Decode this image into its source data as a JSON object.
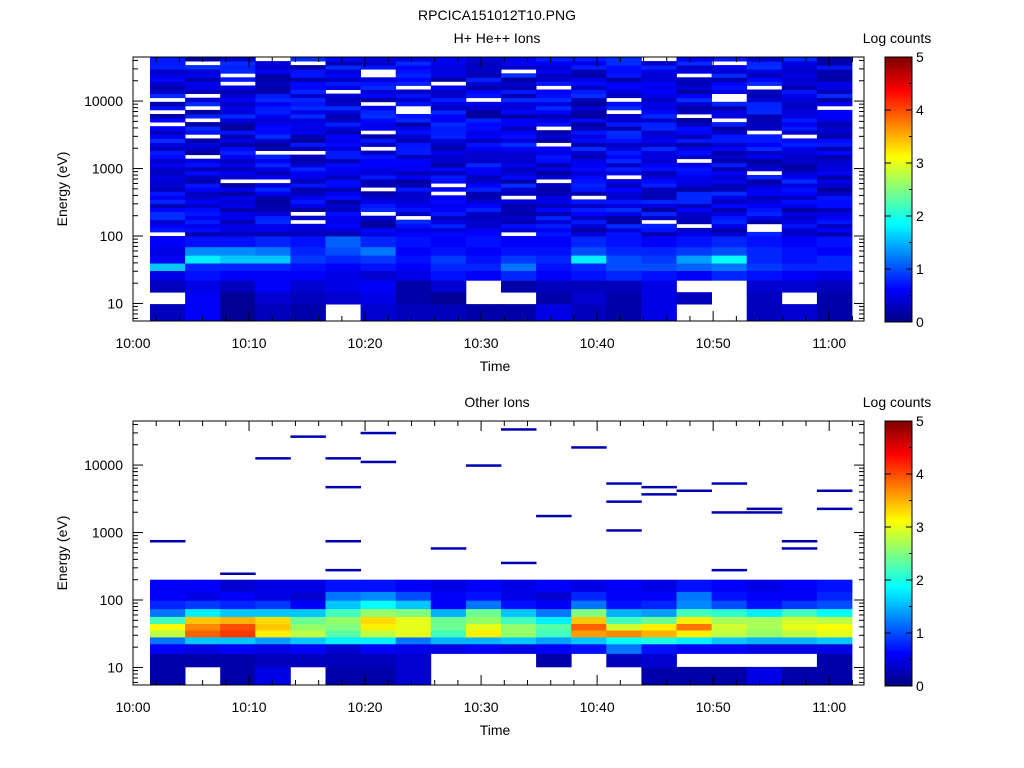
{
  "figure_title": "RPCICA151012T10.PNG",
  "panels": [
    {
      "title": "H+ He++ Ions",
      "xlabel": "Time",
      "ylabel": "Energy (eV)",
      "colorbar_label": "Log counts",
      "colorbar_ticks": [
        "0",
        "1",
        "2",
        "3",
        "4",
        "5"
      ],
      "x_ticks": [
        "10:00",
        "10:10",
        "10:20",
        "10:30",
        "10:40",
        "10:50",
        "11:00"
      ],
      "y_ticks": [
        "10",
        "100",
        "1000",
        "10000"
      ]
    },
    {
      "title": "Other Ions",
      "xlabel": "Time",
      "ylabel": "Energy (eV)",
      "colorbar_label": "Log counts",
      "colorbar_ticks": [
        "0",
        "1",
        "2",
        "3",
        "4",
        "5"
      ],
      "x_ticks": [
        "10:00",
        "10:10",
        "10:20",
        "10:30",
        "10:40",
        "10:50",
        "11:00"
      ],
      "y_ticks": [
        "10",
        "100",
        "1000",
        "10000"
      ]
    }
  ],
  "chart_data": [
    {
      "type": "heatmap",
      "title": "H+ He++ Ions",
      "xlabel": "Time",
      "ylabel": "Energy (eV)",
      "x_range": [
        "10:00",
        "11:03"
      ],
      "y_range": [
        5.5,
        45000
      ],
      "y_scale": "log",
      "colorbar": {
        "label": "Log counts",
        "range": [
          0,
          5
        ],
        "colormap": "jet"
      },
      "time_bins": [
        "10:02",
        "10:05",
        "10:08",
        "10:12",
        "10:15",
        "10:18",
        "10:21",
        "10:24",
        "10:27",
        "10:31",
        "10:34",
        "10:37",
        "10:40",
        "10:43",
        "10:47",
        "10:50",
        "10:53",
        "10:56",
        "10:59",
        "11:02"
      ],
      "energy_bands_eV": [
        {
          "energy": 8,
          "values": [
            0.3,
            0.6,
            0.1,
            0.3,
            0.2,
            null,
            0.4,
            0.3,
            0.3,
            0.2,
            0.2,
            0.5,
            0.3,
            0.2,
            0.5,
            null,
            null,
            0.3,
            0.4,
            0.2
          ]
        },
        {
          "energy": 12,
          "values": [
            null,
            0.6,
            0.1,
            0.4,
            0.3,
            0.4,
            0.5,
            0.2,
            0.1,
            null,
            null,
            0.2,
            0.4,
            0.2,
            0.5,
            0.3,
            null,
            0.3,
            null,
            0.2
          ]
        },
        {
          "energy": 18,
          "values": [
            0.3,
            0.5,
            0.3,
            0.6,
            0.4,
            0.5,
            0.6,
            0.2,
            0.4,
            null,
            0.2,
            0.3,
            0.3,
            0.3,
            0.5,
            null,
            null,
            0.4,
            0.4,
            0.3
          ]
        },
        {
          "energy": 27,
          "values": [
            0.5,
            0.7,
            0.6,
            0.6,
            0.6,
            0.5,
            0.4,
            0.5,
            0.7,
            0.6,
            0.8,
            0.6,
            0.7,
            0.8,
            0.7,
            0.6,
            0.8,
            0.7,
            0.6,
            0.5
          ]
        },
        {
          "energy": 35,
          "values": [
            1.6,
            0.8,
            0.8,
            0.8,
            0.7,
            0.6,
            0.7,
            0.6,
            0.8,
            0.8,
            1.2,
            0.7,
            0.8,
            1.0,
            1.0,
            1.1,
            1.2,
            0.9,
            0.8,
            0.8
          ]
        },
        {
          "energy": 45,
          "values": [
            0.6,
            1.8,
            1.6,
            1.6,
            0.9,
            0.8,
            0.9,
            0.7,
            0.9,
            0.7,
            0.9,
            0.8,
            1.8,
            1.0,
            0.9,
            1.4,
            1.9,
            0.8,
            0.7,
            0.8
          ]
        },
        {
          "energy": 60,
          "values": [
            0.5,
            1.3,
            1.3,
            1.2,
            0.8,
            1.0,
            1.2,
            0.6,
            0.7,
            0.6,
            0.7,
            0.7,
            1.0,
            0.8,
            0.8,
            0.9,
            1.0,
            0.8,
            0.7,
            0.6
          ]
        },
        {
          "energy": 80,
          "values": [
            0.6,
            0.7,
            0.7,
            0.8,
            0.7,
            1.1,
            0.8,
            0.7,
            0.6,
            0.7,
            0.6,
            0.6,
            0.8,
            0.7,
            0.6,
            0.7,
            0.8,
            0.7,
            0.6,
            0.7
          ]
        }
      ],
      "background": "blue (~0.3–0.8 log counts) across 100–45000 eV with scattered empty white bins"
    },
    {
      "type": "heatmap",
      "title": "Other Ions",
      "xlabel": "Time",
      "ylabel": "Energy (eV)",
      "x_range": [
        "10:00",
        "11:03"
      ],
      "y_range": [
        5.5,
        45000
      ],
      "y_scale": "log",
      "colorbar": {
        "label": "Log counts",
        "range": [
          0,
          5
        ],
        "colormap": "jet"
      },
      "time_bins": [
        "10:02",
        "10:05",
        "10:08",
        "10:12",
        "10:15",
        "10:18",
        "10:21",
        "10:24",
        "10:27",
        "10:31",
        "10:34",
        "10:37",
        "10:40",
        "10:43",
        "10:47",
        "10:50",
        "10:53",
        "10:56",
        "10:59",
        "11:02"
      ],
      "energy_bands_eV": [
        {
          "energy": 8,
          "values": [
            0.2,
            null,
            0.2,
            0.5,
            null,
            0.2,
            0.2,
            0.4,
            null,
            null,
            null,
            null,
            null,
            null,
            0.2,
            0.2,
            0.2,
            0.5,
            0.2,
            0.2
          ]
        },
        {
          "energy": 13,
          "values": [
            0.2,
            0.2,
            0.2,
            0.3,
            0.3,
            0.3,
            0.3,
            0.4,
            null,
            null,
            null,
            0.2,
            null,
            0.3,
            0.4,
            null,
            null,
            null,
            null,
            0.2
          ]
        },
        {
          "energy": 20,
          "values": [
            0.6,
            0.5,
            0.6,
            0.5,
            0.6,
            0.4,
            0.6,
            0.5,
            0.5,
            0.6,
            0.5,
            0.6,
            0.7,
            1.2,
            0.7,
            0.6,
            0.6,
            0.5,
            0.5,
            0.5
          ]
        },
        {
          "energy": 25,
          "values": [
            1.2,
            1.6,
            1.6,
            1.4,
            1.6,
            1.8,
            1.8,
            1.2,
            1.5,
            1.5,
            1.6,
            1.4,
            1.6,
            1.9,
            2.0,
            1.8,
            1.6,
            1.5,
            1.5,
            1.6
          ]
        },
        {
          "energy": 32,
          "values": [
            2.8,
            3.9,
            4.1,
            3.2,
            2.8,
            2.3,
            2.8,
            3.0,
            2.2,
            3.2,
            2.6,
            2.2,
            3.6,
            3.7,
            3.5,
            3.2,
            2.8,
            2.6,
            2.8,
            3.0
          ]
        },
        {
          "energy": 40,
          "values": [
            3.1,
            3.7,
            4.0,
            3.4,
            2.6,
            2.5,
            3.2,
            3.0,
            2.4,
            3.0,
            2.6,
            2.3,
            3.9,
            2.9,
            3.2,
            3.8,
            2.9,
            2.7,
            3.0,
            3.1
          ]
        },
        {
          "energy": 50,
          "values": [
            2.2,
            3.4,
            3.5,
            3.3,
            2.4,
            2.6,
            3.3,
            3.0,
            2.4,
            2.6,
            2.2,
            1.8,
            3.4,
            2.2,
            2.4,
            3.2,
            2.7,
            2.7,
            2.9,
            2.8
          ]
        },
        {
          "energy": 65,
          "values": [
            1.2,
            1.8,
            1.6,
            1.6,
            1.6,
            2.2,
            2.6,
            2.5,
            1.5,
            2.4,
            1.6,
            1.2,
            2.5,
            1.5,
            1.4,
            2.2,
            2.1,
            1.8,
            2.2,
            1.9
          ]
        },
        {
          "energy": 85,
          "values": [
            0.8,
            0.9,
            0.8,
            0.9,
            0.6,
            1.6,
            1.9,
            1.6,
            0.6,
            1.2,
            0.7,
            0.6,
            1.2,
            0.7,
            0.8,
            1.3,
            1.0,
            0.7,
            0.9,
            1.0
          ]
        },
        {
          "energy": 115,
          "values": [
            0.6,
            0.5,
            0.6,
            0.5,
            0.4,
            1.2,
            1.3,
            1.0,
            0.6,
            0.7,
            0.5,
            0.4,
            0.8,
            0.6,
            0.6,
            1.2,
            0.7,
            0.6,
            0.6,
            0.8
          ]
        },
        {
          "energy": 155,
          "values": [
            0.6,
            0.6,
            0.4,
            0.5,
            0.5,
            0.7,
            0.7,
            0.6,
            0.5,
            0.6,
            0.5,
            0.6,
            0.5,
            0.6,
            0.5,
            0.7,
            0.6,
            0.5,
            0.6,
            0.7
          ]
        }
      ],
      "sparse_high_energy_counts": "isolated single-bin counts (~0.3 log counts) scattered between 200 and 35000 eV"
    }
  ]
}
